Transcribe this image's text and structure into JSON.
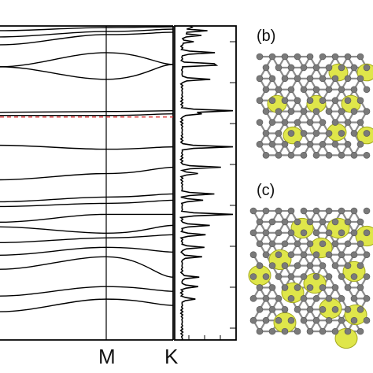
{
  "panels": {
    "b": {
      "label": "(b)"
    },
    "c": {
      "label": "(c)"
    }
  },
  "band_plot": {
    "kpoint_labels": [
      "M",
      "K"
    ],
    "fermi_line_color": "#d62728"
  },
  "colors": {
    "isosurface": "#dfe64a",
    "isosurface_edge": "#a3a81e",
    "atom": "#7a7a7a",
    "bond": "#8c8c8c",
    "line": "#000000"
  },
  "chart_data": {
    "type": "line",
    "title": "",
    "xlabel": "",
    "ylabel": "",
    "x_high_symmetry": [
      "M",
      "K"
    ],
    "bands": [
      {
        "y_start": 0.97,
        "y_m": 0.99,
        "y_end": 0.995
      },
      {
        "y_start": 0.93,
        "y_m": 0.965,
        "y_end": 0.98
      },
      {
        "y_start": 0.88,
        "y_m": 0.945,
        "y_end": 0.96
      },
      {
        "y_start": 0.74,
        "y_m": 0.66,
        "y_end": 0.755
      },
      {
        "y_start": 0.74,
        "y_m": 0.83,
        "y_end": 0.755
      },
      {
        "y_start": 0.45,
        "y_m": 0.455,
        "y_end": 0.46
      },
      {
        "y_start": 0.43,
        "y_m": 0.43,
        "y_end": 0.44
      },
      {
        "y_start": 0.24,
        "y_m": 0.215,
        "y_end": 0.23
      },
      {
        "y_start": 0.02,
        "y_m": 0.06,
        "y_end": 0.1
      },
      {
        "y_start": -0.12,
        "y_m": -0.09,
        "y_end": -0.07
      },
      {
        "y_start": -0.15,
        "y_m": -0.13,
        "y_end": -0.11
      },
      {
        "y_start": -0.25,
        "y_m": -0.2,
        "y_end": -0.2
      },
      {
        "y_start": -0.28,
        "y_m": -0.32,
        "y_end": -0.27
      },
      {
        "y_start": -0.38,
        "y_m": -0.35,
        "y_end": -0.33
      },
      {
        "y_start": -0.46,
        "y_m": -0.41,
        "y_end": -0.44
      },
      {
        "y_start": -0.55,
        "y_m": -0.47,
        "y_end": -0.6
      },
      {
        "y_start": -0.72,
        "y_m": -0.66,
        "y_end": -0.69
      },
      {
        "y_start": -0.82,
        "y_m": -0.74,
        "y_end": -0.78
      }
    ],
    "dos_peaks": [
      {
        "y": 0.995,
        "h": 0.25
      },
      {
        "y": 0.97,
        "h": 0.45
      },
      {
        "y": 0.94,
        "h": 0.35
      },
      {
        "y": 0.9,
        "h": 0.2
      },
      {
        "y": 0.83,
        "h": 0.6
      },
      {
        "y": 0.755,
        "h": 0.9
      },
      {
        "y": 0.66,
        "h": 0.5
      },
      {
        "y": 0.46,
        "h": 0.95
      },
      {
        "y": 0.44,
        "h": 0.35
      },
      {
        "y": 0.23,
        "h": 1.0
      },
      {
        "y": 0.1,
        "h": 0.7
      },
      {
        "y": 0.06,
        "h": 0.3
      },
      {
        "y": -0.07,
        "h": 0.6
      },
      {
        "y": -0.11,
        "h": 0.4
      },
      {
        "y": -0.2,
        "h": 0.95
      },
      {
        "y": -0.27,
        "h": 0.5
      },
      {
        "y": -0.33,
        "h": 0.45
      },
      {
        "y": -0.41,
        "h": 0.4
      },
      {
        "y": -0.47,
        "h": 0.35
      },
      {
        "y": -0.6,
        "h": 0.3
      },
      {
        "y": -0.66,
        "h": 0.3
      },
      {
        "y": -0.74,
        "h": 0.25
      }
    ],
    "fermi_level": 0.42
  }
}
